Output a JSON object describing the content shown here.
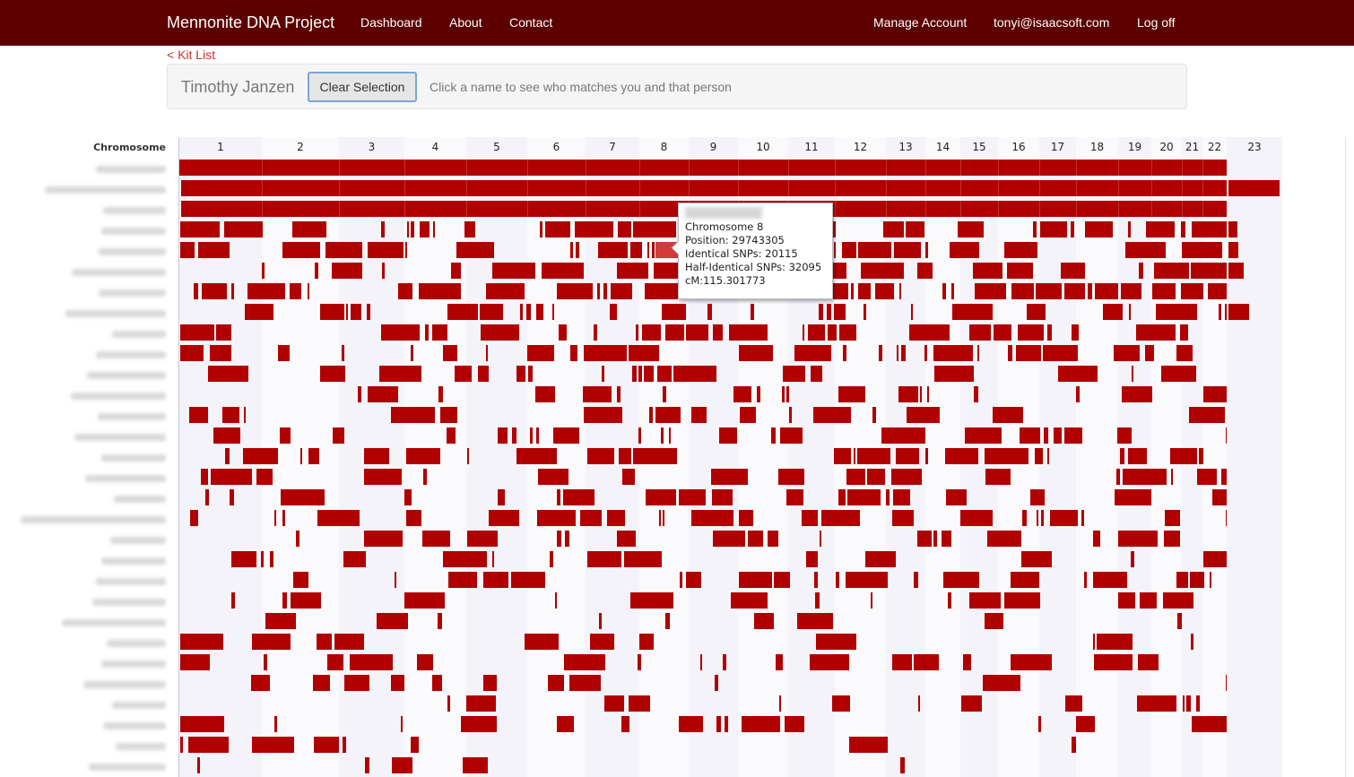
{
  "nav": {
    "brand": "Mennonite DNA Project",
    "dashboard": "Dashboard",
    "about": "About",
    "contact": "Contact",
    "manage_account": "Manage Account",
    "email": "tonyi@isaacsoft.com",
    "logoff": "Log off"
  },
  "kit_list_link": "< Kit List",
  "selection": {
    "name": "Timothy Janzen",
    "clear_button": "Clear Selection",
    "hint": "Click a name to see who matches you and that person"
  },
  "chart_data": {
    "type": "heatmap",
    "ylabel": "Chromosome",
    "chromosomes": [
      "1",
      "2",
      "3",
      "4",
      "5",
      "6",
      "7",
      "8",
      "9",
      "10",
      "11",
      "12",
      "13",
      "14",
      "15",
      "16",
      "17",
      "18",
      "19",
      "20",
      "21",
      "22",
      "23"
    ],
    "match_color": "#b00000",
    "row_count": 30,
    "names_blurred": true
  },
  "tooltip": {
    "chromosome": "Chromosome 8",
    "position": "Position: 29743305",
    "identical": "Identical SNPs: 20115",
    "half_identical": "Half-Identical SNPs: 32095",
    "cm": "cM:115.301773"
  }
}
